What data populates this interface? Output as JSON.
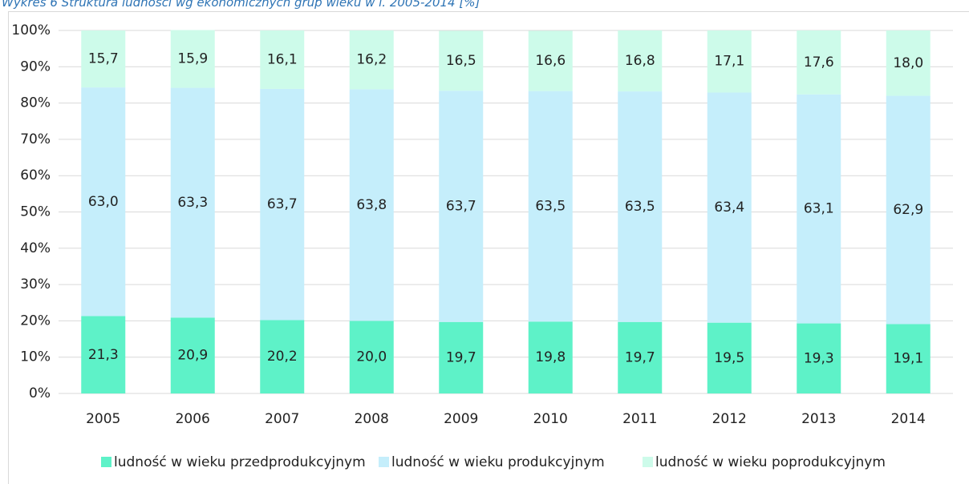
{
  "chart_data": {
    "type": "stacked_bar",
    "title": "Wykres 6 Struktura ludności wg ekonomicznych grup wieku w l. 2005-2014 [%]",
    "categories": [
      "2005",
      "2006",
      "2007",
      "2008",
      "2009",
      "2010",
      "2011",
      "2012",
      "2013",
      "2014"
    ],
    "series": [
      {
        "name": "ludność w wieku przedprodukcyjnym",
        "color": "#5ef2c8",
        "values": [
          21.3,
          20.9,
          20.2,
          20.0,
          19.7,
          19.8,
          19.7,
          19.5,
          19.3,
          19.1
        ],
        "value_labels": [
          "21,3",
          "20,9",
          "20,2",
          "20,0",
          "19,7",
          "19,8",
          "19,7",
          "19,5",
          "19,3",
          "19,1"
        ]
      },
      {
        "name": "ludność w wieku produkcyjnym",
        "color": "#c5eefb",
        "values": [
          63.0,
          63.3,
          63.7,
          63.8,
          63.7,
          63.5,
          63.5,
          63.4,
          63.1,
          62.9
        ],
        "value_labels": [
          "63,0",
          "63,3",
          "63,7",
          "63,8",
          "63,7",
          "63,5",
          "63,5",
          "63,4",
          "63,1",
          "62,9"
        ]
      },
      {
        "name": "ludność w wieku poprodukcyjnym",
        "color": "#cdfbea",
        "values": [
          15.7,
          15.9,
          16.1,
          16.2,
          16.5,
          16.6,
          16.8,
          17.1,
          17.6,
          18.0
        ],
        "value_labels": [
          "15,7",
          "15,9",
          "16,1",
          "16,2",
          "16,5",
          "16,6",
          "16,8",
          "17,1",
          "17,6",
          "18,0"
        ]
      }
    ],
    "ylim": [
      0,
      100
    ],
    "yticks": [
      {
        "value": 0,
        "label": "0%"
      },
      {
        "value": 10,
        "label": "10%"
      },
      {
        "value": 20,
        "label": "20%"
      },
      {
        "value": 30,
        "label": "30%"
      },
      {
        "value": 40,
        "label": "40%"
      },
      {
        "value": 50,
        "label": "50%"
      },
      {
        "value": 60,
        "label": "60%"
      },
      {
        "value": 70,
        "label": "70%"
      },
      {
        "value": 80,
        "label": "80%"
      },
      {
        "value": 90,
        "label": "90%"
      },
      {
        "value": 100,
        "label": "100%"
      }
    ],
    "grid": true,
    "legend": "bottom"
  }
}
